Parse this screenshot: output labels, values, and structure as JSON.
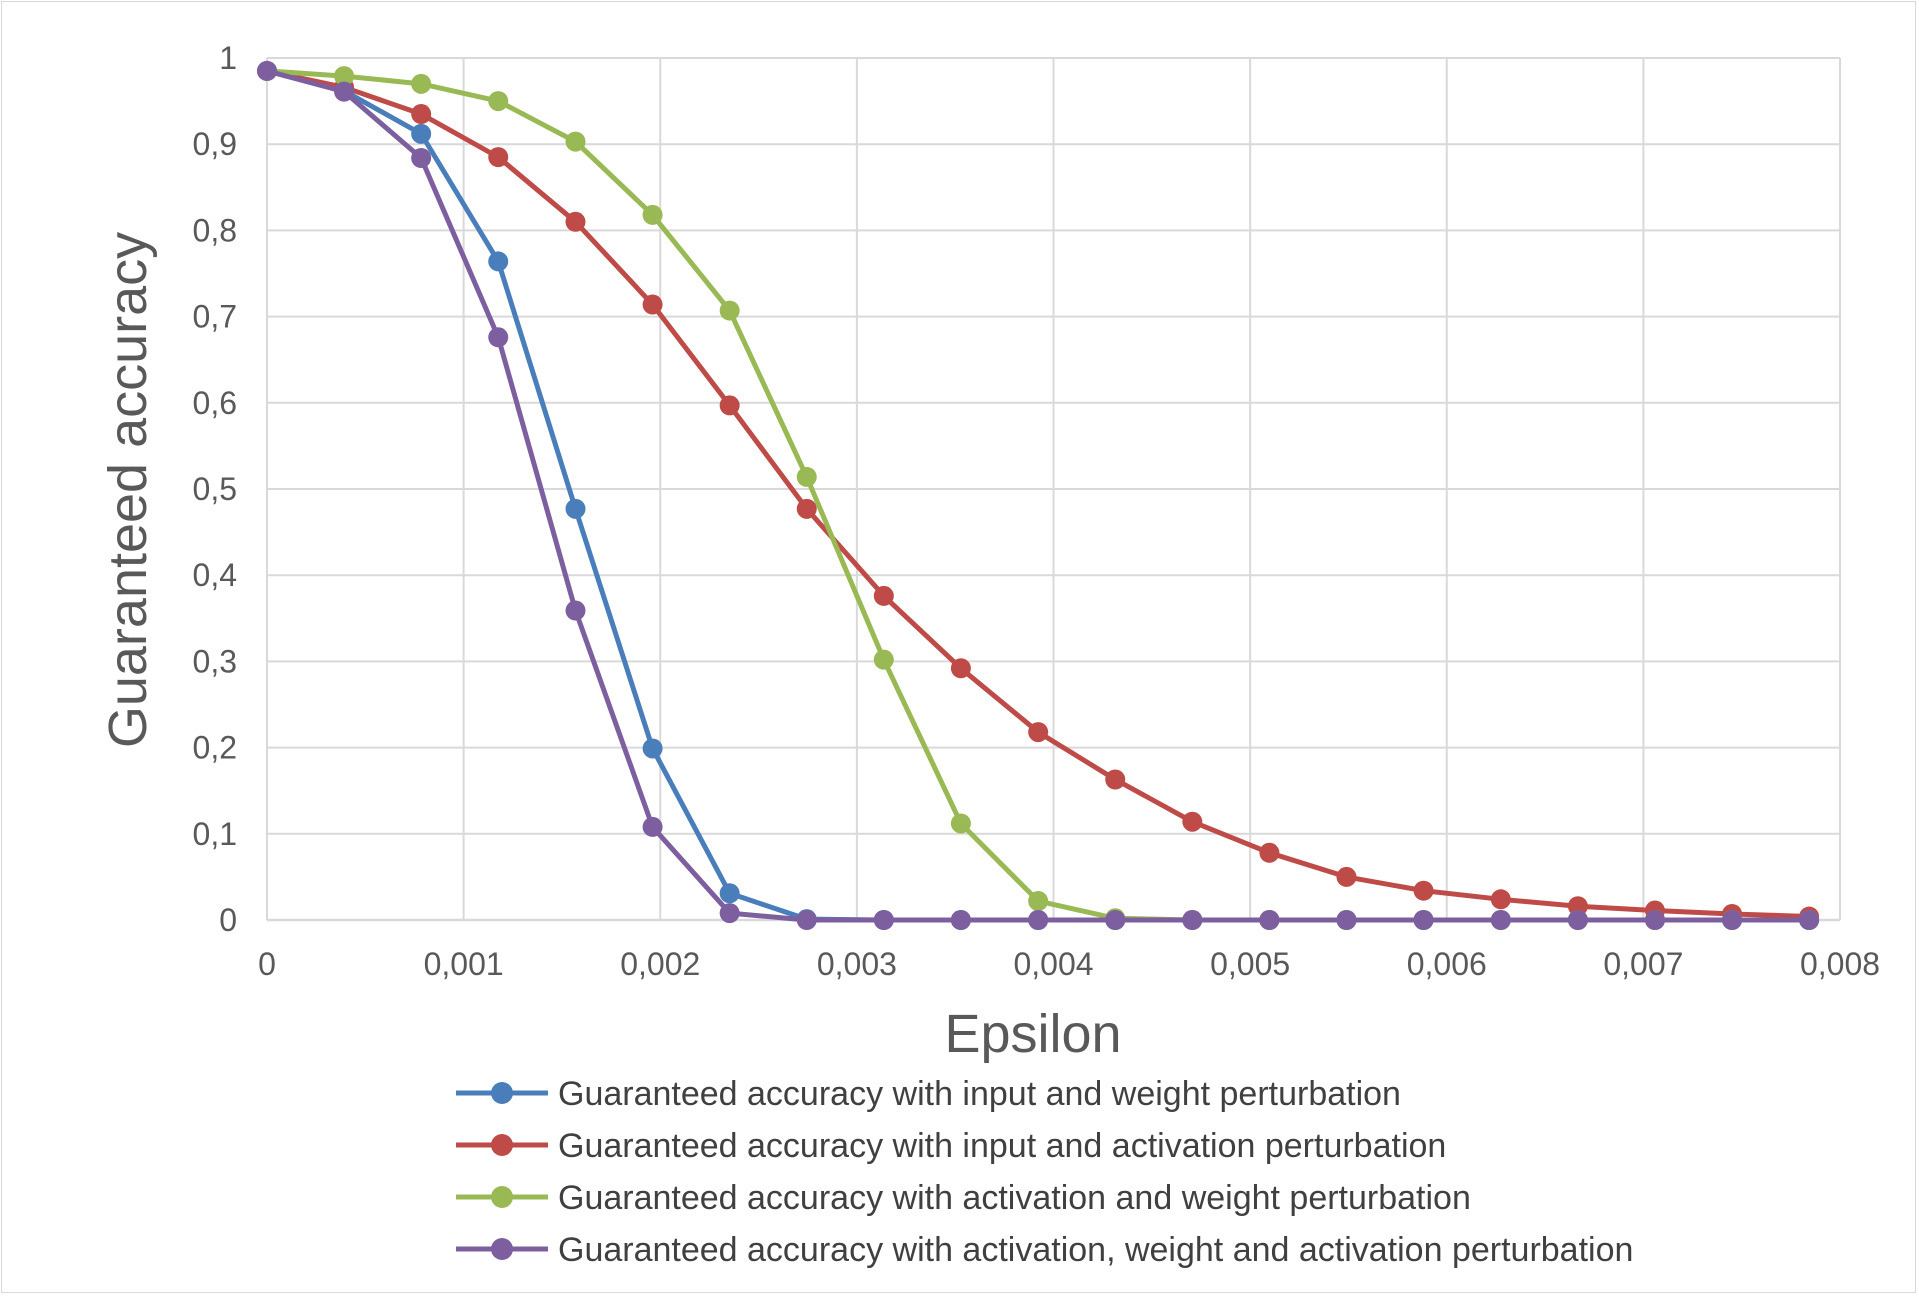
{
  "chart_data": {
    "type": "line",
    "xlabel": "Epsilon",
    "ylabel": "Guaranteed accuracy",
    "xlim": [
      0,
      0.008
    ],
    "ylim": [
      0,
      1
    ],
    "x_ticks": [
      0,
      0.001,
      0.002,
      0.003,
      0.004,
      0.005,
      0.006,
      0.007,
      0.008
    ],
    "x_tick_labels": [
      "0",
      "0,001",
      "0,002",
      "0,003",
      "0,004",
      "0,005",
      "0,006",
      "0,007",
      "0,008"
    ],
    "y_ticks": [
      0,
      0.1,
      0.2,
      0.3,
      0.4,
      0.5,
      0.6,
      0.7,
      0.8,
      0.9,
      1
    ],
    "y_tick_labels": [
      "0",
      "0,1",
      "0,2",
      "0,3",
      "0,4",
      "0,5",
      "0,6",
      "0,7",
      "0,8",
      "0,9",
      "1"
    ],
    "grid": true,
    "legend_position": "bottom",
    "x": [
      0,
      0.000392,
      0.000784,
      0.001176,
      0.001569,
      0.001961,
      0.002353,
      0.002745,
      0.003137,
      0.003529,
      0.003922,
      0.004314,
      0.004706,
      0.005098,
      0.00549,
      0.005882,
      0.006275,
      0.006667,
      0.007059,
      0.007451,
      0.007843
    ],
    "series": [
      {
        "name": "Guaranteed accuracy with input and weight perturbation",
        "color": "#4a7ebb",
        "values": [
          0.985,
          0.962,
          0.912,
          0.764,
          0.477,
          0.199,
          0.031,
          0.001,
          0,
          0,
          0,
          0,
          0,
          0,
          0,
          0,
          0,
          0,
          0,
          0,
          0
        ]
      },
      {
        "name": "Guaranteed accuracy with input and activation perturbation",
        "color": "#be4b48",
        "values": [
          0.985,
          0.966,
          0.935,
          0.885,
          0.81,
          0.714,
          0.597,
          0.477,
          0.376,
          0.292,
          0.218,
          0.163,
          0.114,
          0.078,
          0.05,
          0.034,
          0.024,
          0.016,
          0.011,
          0.007,
          0.004
        ]
      },
      {
        "name": "Guaranteed accuracy with activation and weight perturbation",
        "color": "#98b954",
        "values": [
          0.985,
          0.979,
          0.97,
          0.95,
          0.903,
          0.818,
          0.707,
          0.514,
          0.302,
          0.112,
          0.022,
          0.002,
          0,
          0,
          0,
          0,
          0,
          0,
          0,
          0,
          0
        ]
      },
      {
        "name": "Guaranteed accuracy with activation, weight and activation perturbation",
        "color": "#7d5fa0",
        "values": [
          0.985,
          0.961,
          0.884,
          0.676,
          0.359,
          0.108,
          0.008,
          0,
          0,
          0,
          0,
          0,
          0,
          0,
          0,
          0,
          0,
          0,
          0,
          0,
          0
        ]
      }
    ]
  }
}
